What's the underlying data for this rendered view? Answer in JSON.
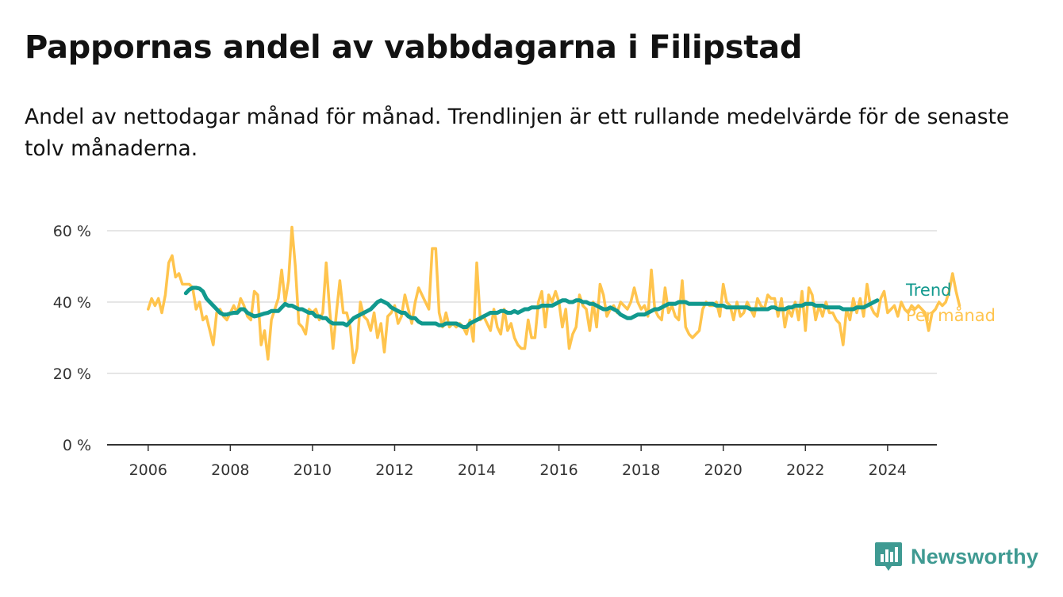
{
  "title": "Pappornas andel av vabbdagarna i Filipstad",
  "subtitle": "Andel av nettodagar månad för månad. Trendlinjen är ett rullande medelvärde för de senaste tolv månaderna.",
  "brand": {
    "name": "Newsworthy",
    "icon": "newsworthy-logo-icon",
    "color": "#3f9a92"
  },
  "colors": {
    "monthly": "#ffc44d",
    "trend": "#11998e",
    "grid": "#dddddd",
    "axis": "#333333"
  },
  "chart_data": {
    "type": "line",
    "x_unit": "year",
    "xlim": [
      2005.0,
      2025.2
    ],
    "ylim": [
      0,
      60
    ],
    "y_ticks": [
      0,
      20,
      40,
      60
    ],
    "y_tick_labels": [
      "0 %",
      "20 %",
      "40 %",
      "60 %"
    ],
    "x_ticks": [
      2006,
      2008,
      2010,
      2012,
      2014,
      2016,
      2018,
      2020,
      2022,
      2024
    ],
    "x_tick_labels": [
      "2006",
      "2008",
      "2010",
      "2012",
      "2014",
      "2016",
      "2018",
      "2020",
      "2022",
      "2024"
    ],
    "grid": "horizontal",
    "legend": "direct labels at right end of lines",
    "series": [
      {
        "name": "Per månad",
        "color": "#ffc44d",
        "start": 2006.0,
        "step_months": 1,
        "values": [
          38,
          41,
          39,
          41,
          37,
          42,
          51,
          53,
          47,
          48,
          45,
          45,
          45,
          44,
          38,
          40,
          35,
          36,
          32,
          28,
          37,
          38,
          36,
          35,
          37,
          39,
          37,
          41,
          39,
          36,
          35,
          43,
          42,
          28,
          32,
          24,
          35,
          38,
          41,
          49,
          40,
          46,
          61,
          50,
          34,
          33,
          31,
          38,
          37,
          38,
          35,
          37,
          51,
          38,
          27,
          37,
          46,
          37,
          37,
          33,
          23,
          27,
          40,
          36,
          35,
          32,
          37,
          30,
          34,
          26,
          36,
          37,
          39,
          34,
          36,
          42,
          38,
          34,
          40,
          44,
          42,
          40,
          38,
          55,
          55,
          37,
          33,
          37,
          33,
          34,
          33,
          34,
          33,
          31,
          35,
          29,
          51,
          35,
          36,
          34,
          32,
          38,
          33,
          31,
          38,
          32,
          34,
          30,
          28,
          27,
          27,
          35,
          30,
          30,
          40,
          43,
          33,
          42,
          40,
          43,
          40,
          33,
          38,
          27,
          31,
          33,
          42,
          39,
          38,
          32,
          40,
          33,
          45,
          42,
          36,
          38,
          39,
          37,
          40,
          39,
          38,
          40,
          44,
          40,
          38,
          39,
          36,
          49,
          38,
          36,
          35,
          44,
          37,
          39,
          36,
          35,
          46,
          33,
          31,
          30,
          31,
          32,
          38,
          40,
          39,
          39,
          40,
          36,
          45,
          40,
          39,
          35,
          40,
          36,
          37,
          40,
          38,
          36,
          41,
          39,
          38,
          42,
          41,
          41,
          36,
          41,
          33,
          38,
          36,
          40,
          35,
          43,
          32,
          44,
          42,
          35,
          39,
          36,
          40,
          37,
          37,
          35,
          34,
          28,
          38,
          35,
          41,
          37,
          41,
          36,
          45,
          39,
          37,
          36,
          41,
          43,
          37,
          38,
          39,
          36,
          40,
          38,
          37,
          39,
          38,
          39,
          38,
          37,
          32,
          37,
          38,
          40,
          39,
          40,
          43,
          48,
          43,
          39
        ]
      },
      {
        "name": "Trend",
        "color": "#11998e",
        "start": 2006.917,
        "step_months": 1,
        "values": [
          42.5,
          43.5,
          44,
          44,
          43.8,
          43,
          41,
          40,
          39,
          38,
          37,
          36.5,
          36.5,
          36.8,
          37,
          37,
          38,
          38,
          37,
          36.5,
          36,
          36.2,
          36.5,
          36.8,
          37,
          37.5,
          37.5,
          37.5,
          38.5,
          39.5,
          39,
          39,
          38.5,
          38,
          38,
          37.5,
          37,
          37,
          36,
          36,
          35.5,
          35.5,
          34.5,
          34,
          34,
          34,
          34,
          33.5,
          34.5,
          35.5,
          36,
          36.5,
          37,
          37.5,
          38,
          39,
          40,
          40.5,
          40,
          39.5,
          38.5,
          38,
          37.5,
          37,
          37,
          36,
          35.5,
          35.5,
          34.5,
          34,
          34,
          34,
          34,
          34,
          33.5,
          33.5,
          34,
          34,
          34,
          34,
          33.5,
          33,
          33,
          34,
          34.5,
          35,
          35.5,
          36,
          36.5,
          37,
          37,
          37,
          37.5,
          37.5,
          37,
          37,
          37.5,
          37,
          37.5,
          38,
          38,
          38.5,
          38.5,
          38.5,
          39,
          39,
          39,
          39,
          39.5,
          40,
          40.5,
          40.5,
          40,
          40,
          40.5,
          40.5,
          40,
          40,
          39.5,
          39.5,
          39,
          38.5,
          38,
          38,
          38.5,
          38,
          37.5,
          36.5,
          36,
          35.5,
          35.5,
          36,
          36.5,
          36.5,
          36.5,
          37,
          37.5,
          38,
          38,
          38.5,
          39,
          39.5,
          39.5,
          39.5,
          40,
          40,
          40,
          39.5,
          39.5,
          39.5,
          39.5,
          39.5,
          39.5,
          39.5,
          39.5,
          39,
          39,
          39,
          38.5,
          38.5,
          38.5,
          38.5,
          38.5,
          38.5,
          38.5,
          38,
          38,
          38,
          38,
          38,
          38,
          38.5,
          38.5,
          38,
          38,
          38,
          38.5,
          38.5,
          39,
          39,
          39,
          39.5,
          39.5,
          39.5,
          39,
          39,
          39,
          38.5,
          38.5,
          38.5,
          38.5,
          38.5,
          38,
          38,
          38,
          38,
          38.5,
          38.5,
          38.5,
          39,
          39.5,
          40,
          40.5
        ]
      }
    ]
  }
}
